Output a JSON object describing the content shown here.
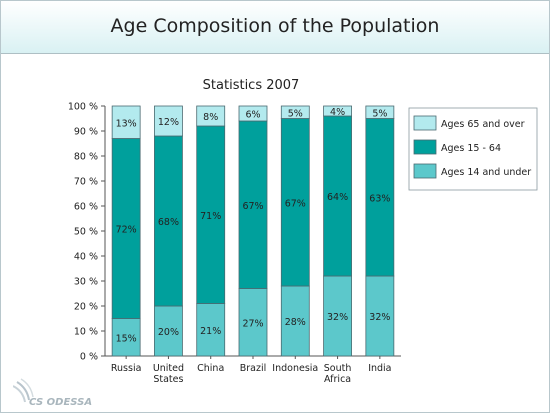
{
  "slide": {
    "title": "Age Composition of the Population",
    "logo_text": "CS ODESSA"
  },
  "colors": {
    "ages_65_and_over": "#b3eaee",
    "ages_15_64": "#00a09c",
    "ages_14_and_under": "#5cc8cb",
    "bar_stroke": "#4a6a70"
  },
  "chart_data": {
    "type": "bar",
    "stacked": true,
    "title": "Statistics 2007",
    "categories": [
      [
        "Russia"
      ],
      [
        "United",
        "States"
      ],
      [
        "China"
      ],
      [
        "Brazil"
      ],
      [
        "Indonesia"
      ],
      [
        "South",
        "Africa"
      ],
      [
        "India"
      ]
    ],
    "series": [
      {
        "name": "Ages 14 and under",
        "values": [
          15,
          20,
          21,
          27,
          28,
          32,
          32
        ],
        "labels": [
          "15%",
          "20%",
          "21%",
          "27%",
          "28%",
          "32%",
          "32%"
        ]
      },
      {
        "name": "Ages 15 - 64",
        "values": [
          72,
          68,
          71,
          67,
          67,
          64,
          63
        ],
        "labels": [
          "72%",
          "68%",
          "71%",
          "67%",
          "67%",
          "64%",
          "63%"
        ]
      },
      {
        "name": "Ages 65 and over",
        "values": [
          13,
          12,
          8,
          6,
          5,
          4,
          5
        ],
        "labels": [
          "13%",
          "12%",
          "8%",
          "6%",
          "5%",
          "4%",
          "5%"
        ]
      }
    ],
    "legend_order": [
      "Ages 65 and over",
      "Ages 15 - 64",
      "Ages 14 and under"
    ],
    "legend_position": "right",
    "ylim": [
      0,
      100
    ],
    "yticks": [
      "0 %",
      "10 %",
      "20 %",
      "30 %",
      "40 %",
      "50 %",
      "60 %",
      "70 %",
      "80 %",
      "90 %",
      "100 %"
    ],
    "grid": false
  }
}
